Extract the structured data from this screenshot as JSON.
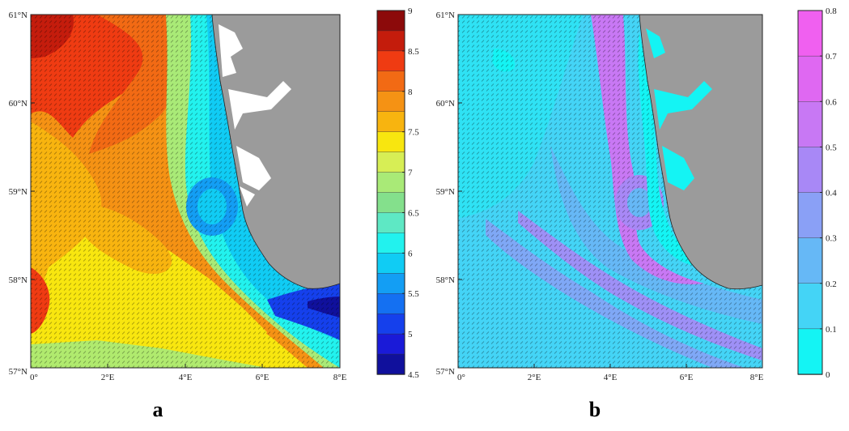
{
  "panels": [
    {
      "id": "a",
      "letter": "a",
      "lat_labels": [
        "61°N",
        "60°N",
        "59°N",
        "58°N",
        "57°N"
      ],
      "lon_labels": [
        "0°",
        "2°E",
        "4°E",
        "6°E",
        "8°E"
      ],
      "colorbar": {
        "ticks": [
          "9",
          "8.5",
          "8",
          "7.5",
          "7",
          "6.5",
          "6",
          "5.5",
          "5",
          "4.5"
        ],
        "range": [
          4.5,
          9
        ],
        "colors": [
          "#8c0a0a",
          "#c41c0c",
          "#ef3b12",
          "#f26a14",
          "#f59214",
          "#f8b40f",
          "#f8e60f",
          "#d7ee55",
          "#a9ea77",
          "#84e08c",
          "#5ee8c4",
          "#22f2ee",
          "#10ccf4",
          "#139ef4",
          "#1470f2",
          "#1540ec",
          "#1a1ad8",
          "#10109c"
        ]
      }
    },
    {
      "id": "b",
      "letter": "b",
      "lat_labels": [
        "61°N",
        "60°N",
        "59°N",
        "58°N",
        "57°N"
      ],
      "lon_labels": [
        "0°",
        "2°E",
        "4°E",
        "6°E",
        "8°E"
      ],
      "colorbar": {
        "ticks": [
          "0.8",
          "0.7",
          "0.6",
          "0.5",
          "0.4",
          "0.3",
          "0.2",
          "0.1",
          "0"
        ],
        "range": [
          0,
          0.8
        ],
        "colors": [
          "#f060f0",
          "#df68f2",
          "#c878f4",
          "#a888f6",
          "#8aa0f6",
          "#66b8f6",
          "#44d4f6",
          "#14f4f4"
        ]
      }
    }
  ],
  "map_colors": {
    "land": "#9b9b9b",
    "fjord": "#ffffff"
  }
}
